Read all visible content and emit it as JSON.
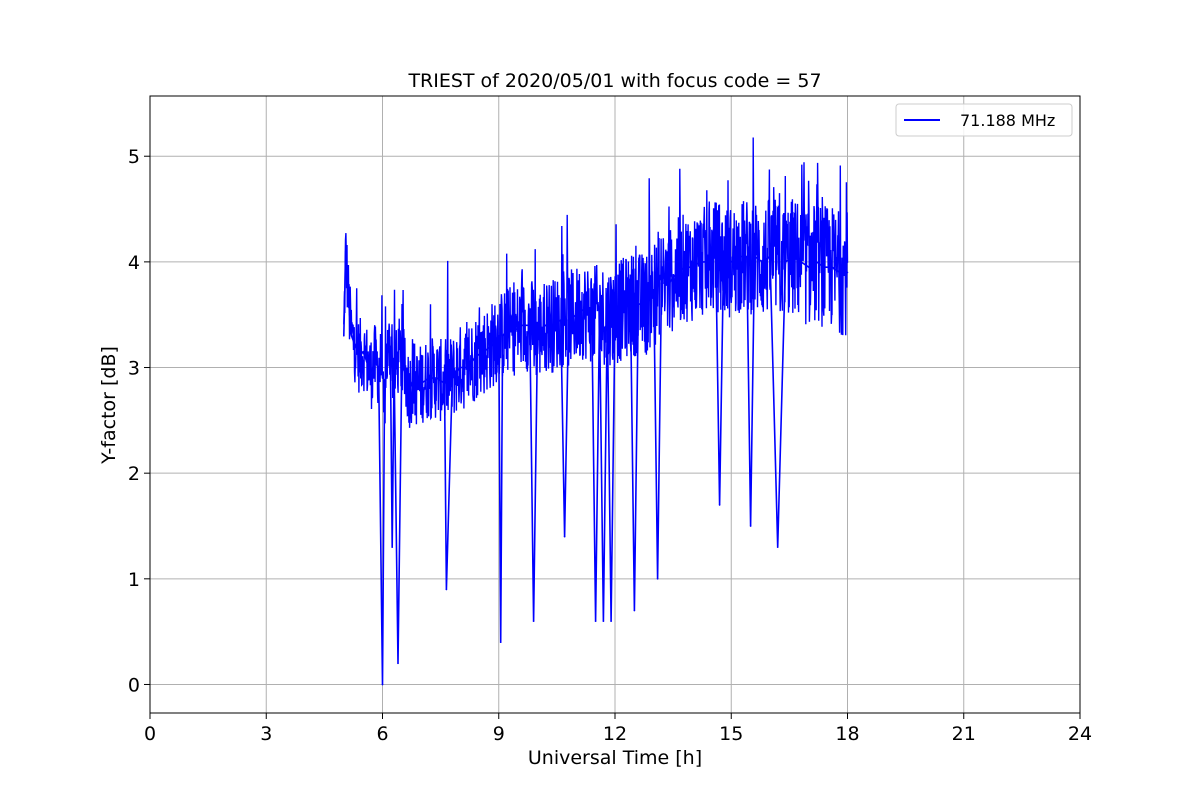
{
  "chart_data": {
    "type": "line",
    "title": "TRIEST of 2020/05/01 with focus code = 57",
    "xlabel": "Universal Time [h]",
    "ylabel": "Y-factor [dB]",
    "xlim": [
      0,
      24
    ],
    "ylim": [
      -0.27,
      5.57
    ],
    "xticks": [
      0,
      3,
      6,
      9,
      12,
      15,
      18,
      21,
      24
    ],
    "yticks": [
      0,
      1,
      2,
      3,
      4,
      5
    ],
    "grid": true,
    "legend": "top-right",
    "series": [
      {
        "name": "71.188 MHz",
        "color": "#0000ff",
        "x": [
          5.0,
          5.05,
          5.1,
          5.15,
          5.2,
          5.3,
          5.4,
          5.5,
          5.6,
          5.7,
          5.8,
          5.9,
          6.0,
          6.05,
          6.1,
          6.2,
          6.25,
          6.3,
          6.4,
          6.5,
          6.6,
          6.7,
          6.8,
          6.9,
          7.0,
          7.2,
          7.4,
          7.6,
          7.65,
          7.8,
          8.0,
          8.2,
          8.4,
          8.6,
          8.8,
          9.0,
          9.05,
          9.1,
          9.2,
          9.4,
          9.6,
          9.8,
          9.9,
          10.0,
          10.2,
          10.4,
          10.6,
          10.7,
          10.8,
          11.0,
          11.2,
          11.4,
          11.5,
          11.6,
          11.7,
          11.8,
          11.9,
          12.0,
          12.2,
          12.4,
          12.5,
          12.6,
          12.8,
          13.0,
          13.1,
          13.2,
          13.4,
          13.6,
          13.8,
          14.0,
          14.2,
          14.4,
          14.6,
          14.7,
          14.8,
          15.0,
          15.2,
          15.4,
          15.5,
          15.6,
          15.8,
          16.0,
          16.2,
          16.4,
          16.6,
          16.8,
          17.0,
          17.2,
          17.4,
          17.6,
          17.8,
          18.0
        ],
        "y": [
          3.3,
          4.1,
          3.8,
          3.5,
          3.3,
          3.2,
          3.1,
          3.15,
          3.05,
          2.95,
          3.05,
          3.0,
          0.0,
          2.6,
          3.1,
          3.2,
          1.3,
          3.0,
          0.2,
          3.1,
          2.9,
          2.8,
          2.9,
          2.8,
          2.85,
          2.9,
          2.9,
          2.85,
          0.9,
          2.9,
          3.0,
          3.0,
          3.1,
          3.15,
          3.2,
          3.3,
          0.4,
          3.3,
          3.35,
          3.35,
          3.4,
          3.4,
          0.6,
          3.3,
          3.4,
          3.4,
          3.45,
          1.4,
          3.45,
          3.5,
          3.55,
          3.5,
          0.6,
          3.5,
          0.6,
          3.5,
          0.6,
          3.5,
          3.55,
          3.6,
          0.7,
          3.6,
          3.6,
          3.7,
          1.0,
          3.8,
          3.8,
          3.9,
          3.95,
          3.95,
          4.0,
          4.0,
          4.05,
          1.7,
          4.0,
          4.0,
          4.05,
          4.05,
          1.5,
          4.05,
          4.0,
          4.05,
          1.3,
          4.0,
          4.05,
          4.0,
          3.95,
          4.0,
          3.95,
          3.95,
          3.9,
          3.9
        ]
      }
    ]
  }
}
